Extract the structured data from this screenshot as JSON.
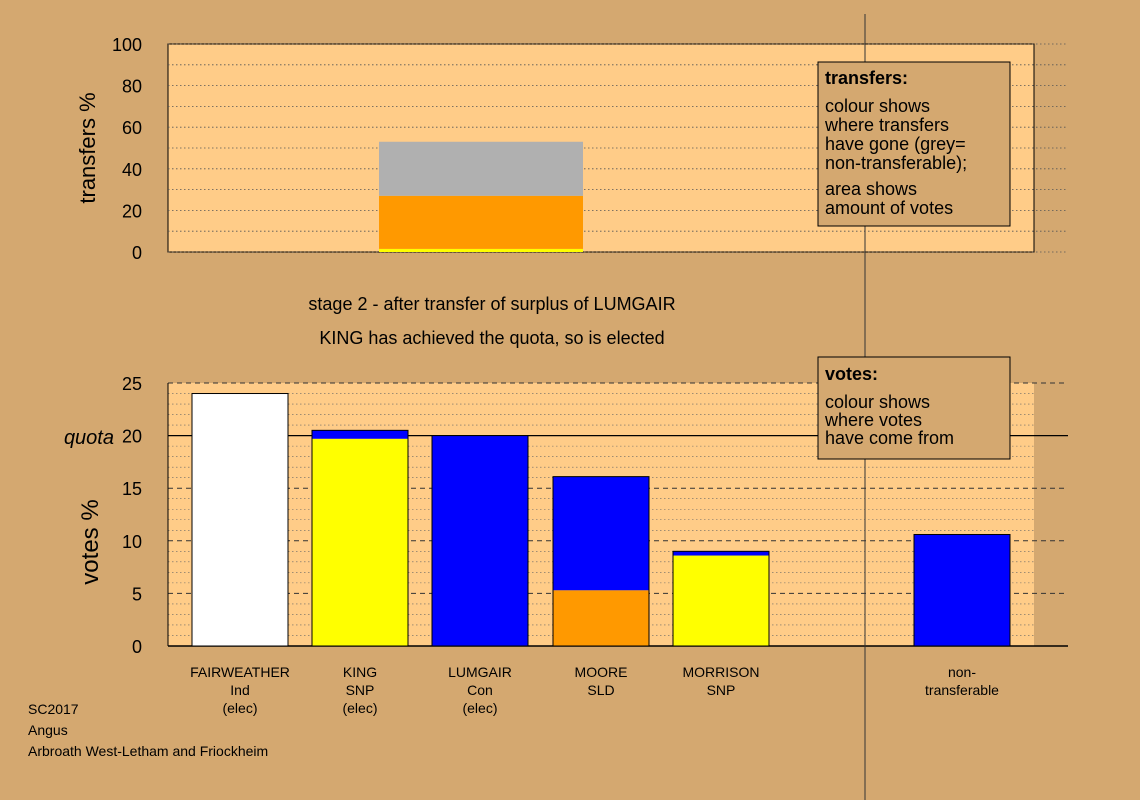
{
  "chart_data": [
    {
      "type": "bar",
      "stacked": true,
      "ylabel": "transfers %",
      "ylim": [
        0,
        100
      ],
      "yticks": [
        0,
        20,
        40,
        60,
        80,
        100
      ],
      "grid": true,
      "bar": {
        "segments": [
          {
            "color": "#ffff00",
            "value": 1.5
          },
          {
            "color": "#ff9900",
            "value": 25.5
          },
          {
            "color": "#b0b0b0",
            "value": 26
          }
        ]
      },
      "annotation": {
        "title": "transfers:",
        "lines": [
          "colour shows",
          "where transfers",
          "have gone (grey=",
          "non-transferable);"
        ],
        "lines2": [
          "area shows",
          "amount of votes"
        ]
      }
    },
    {
      "type": "bar",
      "stacked": true,
      "ylabel": "votes %",
      "ylim": [
        0,
        25
      ],
      "yticks": [
        0,
        5,
        10,
        15,
        20,
        25
      ],
      "quota": 20,
      "quota_label": "quota",
      "grid": true,
      "categories": [
        {
          "lines": [
            "FAIRWEATHER",
            "Ind",
            "(elec)"
          ],
          "segments": [
            {
              "color": "#ffffff",
              "value": 24
            }
          ]
        },
        {
          "lines": [
            "KING",
            "SNP",
            "(elec)"
          ],
          "segments": [
            {
              "color": "#ffff00",
              "value": 19.7
            },
            {
              "color": "#0000ff",
              "value": 0.8
            }
          ]
        },
        {
          "lines": [
            "LUMGAIR",
            "Con",
            "(elec)"
          ],
          "segments": [
            {
              "color": "#0000ff",
              "value": 20
            }
          ]
        },
        {
          "lines": [
            "MOORE",
            "SLD"
          ],
          "segments": [
            {
              "color": "#ff9900",
              "value": 5.3
            },
            {
              "color": "#0000ff",
              "value": 10.8
            }
          ]
        },
        {
          "lines": [
            "MORRISON",
            "SNP"
          ],
          "segments": [
            {
              "color": "#ffff00",
              "value": 8.6
            },
            {
              "color": "#0000ff",
              "value": 0.4
            }
          ]
        },
        {
          "lines": [
            "non-",
            "transferable"
          ],
          "segments": [
            {
              "color": "#0000ff",
              "value": 10.6
            }
          ]
        }
      ],
      "annotation": {
        "title": "votes:",
        "lines": [
          "colour shows",
          "where votes",
          "have come from"
        ]
      }
    }
  ],
  "stage_text": "stage 2 - after transfer of surplus of LUMGAIR",
  "elected_text": "KING has achieved the quota, so is elected",
  "footer": [
    "SC2017",
    "Angus",
    "Arbroath West-Letham and Friockheim"
  ],
  "colors": {
    "background": "#d4a870",
    "plot_bg": "#ffcc88",
    "box_bg": "#d4a870"
  }
}
